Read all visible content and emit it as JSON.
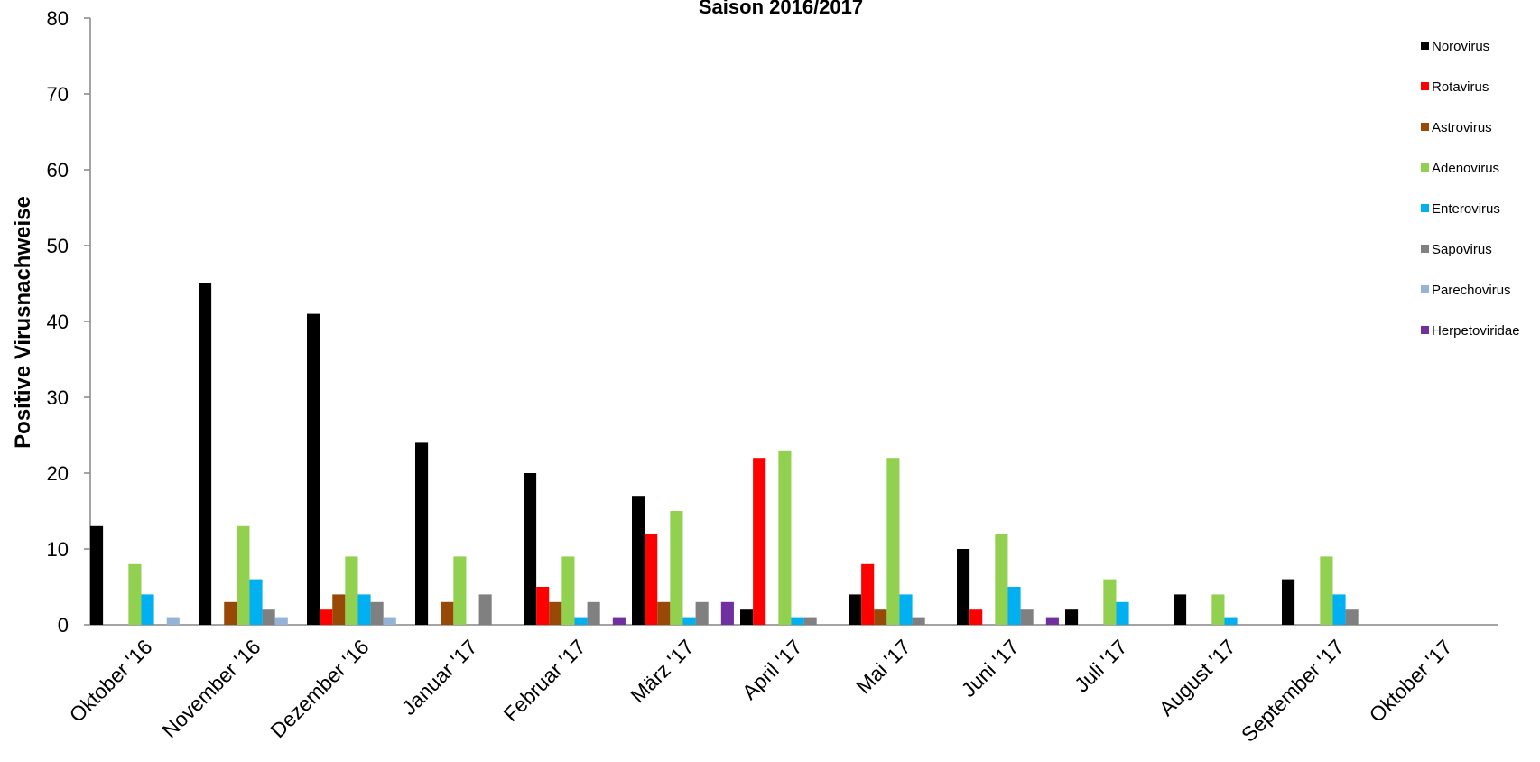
{
  "chart_data": {
    "type": "bar",
    "title": "Saison 2016/2017",
    "xlabel": "",
    "ylabel": "Positive Virusnachweise",
    "ylim": [
      0,
      80
    ],
    "yticks": [
      0,
      10,
      20,
      30,
      40,
      50,
      60,
      70,
      80
    ],
    "grid": false,
    "legend_position": "right",
    "categories": [
      "Oktober '16",
      "November '16",
      "Dezember '16",
      "Januar '17",
      "Februar '17",
      "März '17",
      "April '17",
      "Mai '17",
      "Juni '17",
      "Juli '17",
      "August '17",
      "September '17",
      "Oktober '17"
    ],
    "series": [
      {
        "name": "Norovirus",
        "color": "#000000",
        "values": [
          13,
          45,
          41,
          24,
          20,
          17,
          2,
          4,
          10,
          2,
          4,
          6,
          0
        ]
      },
      {
        "name": "Rotavirus",
        "color": "#ff0000",
        "values": [
          0,
          0,
          2,
          0,
          5,
          12,
          22,
          8,
          2,
          0,
          0,
          0,
          0
        ]
      },
      {
        "name": "Astrovirus",
        "color": "#984807",
        "values": [
          0,
          3,
          4,
          3,
          3,
          3,
          0,
          2,
          0,
          0,
          0,
          0,
          0
        ]
      },
      {
        "name": "Adenovirus",
        "color": "#92d050",
        "values": [
          8,
          13,
          9,
          9,
          9,
          15,
          23,
          22,
          12,
          6,
          4,
          9,
          0
        ]
      },
      {
        "name": "Enterovirus",
        "color": "#00b0f0",
        "values": [
          4,
          6,
          4,
          0,
          1,
          1,
          1,
          4,
          5,
          3,
          1,
          4,
          0
        ]
      },
      {
        "name": "Sapovirus",
        "color": "#808080",
        "values": [
          0,
          2,
          3,
          4,
          3,
          3,
          1,
          1,
          2,
          0,
          0,
          2,
          0
        ]
      },
      {
        "name": "Parechovirus",
        "color": "#95b3d7",
        "values": [
          1,
          1,
          1,
          0,
          0,
          0,
          0,
          0,
          0,
          0,
          0,
          0,
          0
        ]
      },
      {
        "name": "Herpetoviridae",
        "color": "#7030a0",
        "values": [
          0,
          0,
          0,
          0,
          1,
          3,
          0,
          0,
          1,
          0,
          0,
          0,
          0
        ]
      }
    ]
  }
}
